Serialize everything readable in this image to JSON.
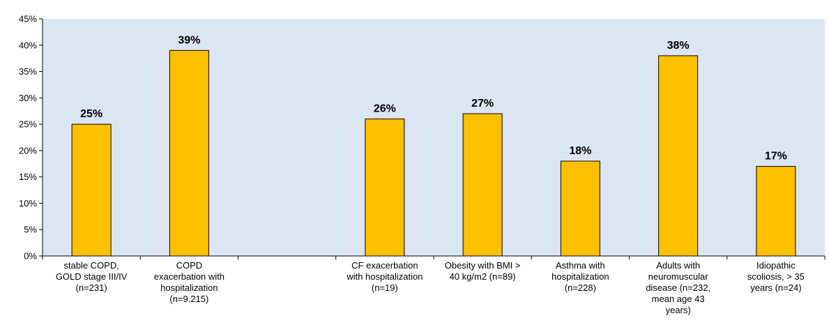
{
  "chart_data": {
    "type": "bar",
    "title": "",
    "xlabel": "",
    "ylabel": "",
    "ylim": [
      0,
      45
    ],
    "yticks": [
      "0%",
      "5%",
      "10%",
      "15%",
      "20%",
      "25%",
      "30%",
      "35%",
      "40%",
      "45%"
    ],
    "grid": false,
    "legend": "none",
    "categories": [
      [
        "stable COPD,",
        "GOLD stage III/IV",
        "(n=231)"
      ],
      [
        "COPD",
        "exacerbation with",
        "hospitalization",
        "(n=9.215)"
      ],
      [],
      [
        "CF exacerbation",
        "with hospitalization",
        "(n=19)"
      ],
      [
        "Obesity with BMI >",
        "40 kg/m2 (n=89)"
      ],
      [
        "Asthma with",
        "hospitalization",
        "(n=228)"
      ],
      [
        "Adults with",
        "neuromuscular",
        "disease (n=232,",
        "mean age  43",
        "years)"
      ],
      [
        "Idiopathic",
        "scoliosis, > 35",
        "years (n=24)"
      ]
    ],
    "values": [
      25,
      39,
      null,
      26,
      27,
      18,
      38,
      17
    ],
    "labels": [
      "25%",
      "39%",
      "",
      "26%",
      "27%",
      "18%",
      "38%",
      "17%"
    ],
    "colors": {
      "bar": "#FFC000",
      "bar_edge": "#000000",
      "plot_bg": "#DCE6F2",
      "axis": "#000000"
    }
  }
}
